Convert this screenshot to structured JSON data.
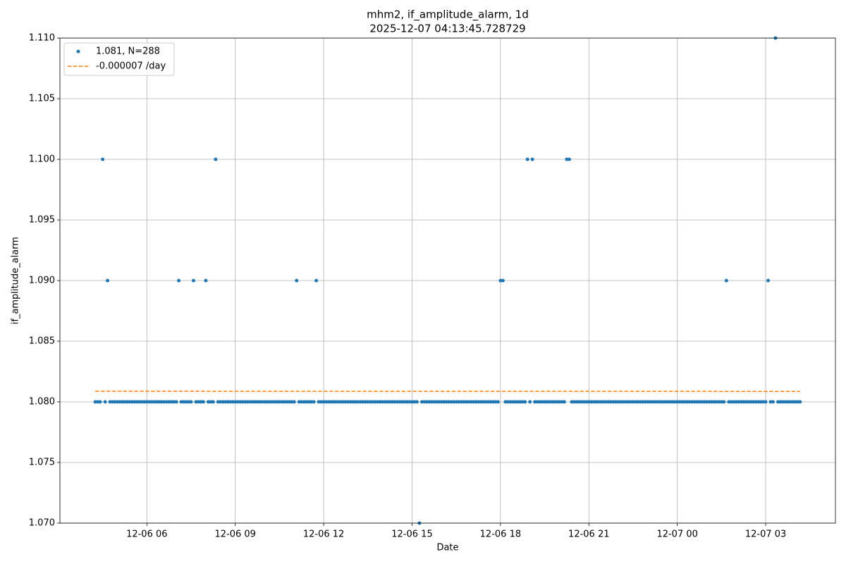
{
  "chart_data": {
    "type": "scatter",
    "title": "mhm2, if_amplitude_alarm, 1d",
    "subtitle": "2025-12-07 04:13:45.728729",
    "xlabel": "Date",
    "ylabel": "if_amplitude_alarm",
    "xlim": [
      "12-06 03:03",
      "12-07 05:22"
    ],
    "xticks": [
      "12-06 06",
      "12-06 09",
      "12-06 12",
      "12-06 15",
      "12-06 18",
      "12-06 21",
      "12-07 00",
      "12-07 03"
    ],
    "ylim": [
      1.07,
      1.11
    ],
    "yticks": [
      {
        "value": 1.07,
        "label": "1.070"
      },
      1.075,
      {
        "value": 1.08,
        "label": "1.080"
      },
      1.085,
      {
        "value": 1.09,
        "label": "1.090"
      },
      1.095,
      {
        "value": 1.1,
        "label": "1.100"
      },
      1.105,
      {
        "value": 1.11,
        "label": "1.110"
      }
    ],
    "grid": true,
    "legend": "upper left",
    "series": [
      {
        "name": "1.081, N=288",
        "color": "#1f77b4",
        "mark": "dot",
        "x": [
          "12-06 04:15",
          "12-06 04:20",
          "12-06 04:25",
          "12-06 04:30",
          "12-06 04:35",
          "12-06 04:40",
          "12-06 04:45",
          "12-06 04:50",
          "12-06 04:55",
          "12-06 05:00",
          "12-06 05:05",
          "12-06 05:10",
          "12-06 05:15",
          "12-06 05:20",
          "12-06 05:25",
          "12-06 05:30",
          "12-06 05:35",
          "12-06 05:40",
          "12-06 05:45",
          "12-06 05:50",
          "12-06 05:55",
          "12-06 06:00",
          "12-06 06:05",
          "12-06 06:10",
          "12-06 06:15",
          "12-06 06:20",
          "12-06 06:25",
          "12-06 06:30",
          "12-06 06:35",
          "12-06 06:40",
          "12-06 06:45",
          "12-06 06:50",
          "12-06 06:55",
          "12-06 07:00",
          "12-06 07:05",
          "12-06 07:10",
          "12-06 07:15",
          "12-06 07:20",
          "12-06 07:25",
          "12-06 07:30",
          "12-06 07:35",
          "12-06 07:40",
          "12-06 07:45",
          "12-06 07:50",
          "12-06 07:55",
          "12-06 08:00",
          "12-06 08:05",
          "12-06 08:10",
          "12-06 08:15",
          "12-06 08:20",
          "12-06 08:25",
          "12-06 08:30",
          "12-06 08:35",
          "12-06 08:40",
          "12-06 08:45",
          "12-06 08:50",
          "12-06 08:55",
          "12-06 09:00",
          "12-06 09:05",
          "12-06 09:10",
          "12-06 09:15",
          "12-06 09:20",
          "12-06 09:25",
          "12-06 09:30",
          "12-06 09:35",
          "12-06 09:40",
          "12-06 09:45",
          "12-06 09:50",
          "12-06 09:55",
          "12-06 10:00",
          "12-06 10:05",
          "12-06 10:10",
          "12-06 10:15",
          "12-06 10:20",
          "12-06 10:25",
          "12-06 10:30",
          "12-06 10:35",
          "12-06 10:40",
          "12-06 10:45",
          "12-06 10:50",
          "12-06 10:55",
          "12-06 11:00",
          "12-06 11:05",
          "12-06 11:10",
          "12-06 11:15",
          "12-06 11:20",
          "12-06 11:25",
          "12-06 11:30",
          "12-06 11:35",
          "12-06 11:40",
          "12-06 11:45",
          "12-06 11:50",
          "12-06 11:55",
          "12-06 12:00",
          "12-06 12:05",
          "12-06 12:10",
          "12-06 12:15",
          "12-06 12:20",
          "12-06 12:25",
          "12-06 12:30",
          "12-06 12:35",
          "12-06 12:40",
          "12-06 12:45",
          "12-06 12:50",
          "12-06 12:55",
          "12-06 13:00",
          "12-06 13:05",
          "12-06 13:10",
          "12-06 13:15",
          "12-06 13:20",
          "12-06 13:25",
          "12-06 13:30",
          "12-06 13:35",
          "12-06 13:40",
          "12-06 13:45",
          "12-06 13:50",
          "12-06 13:55",
          "12-06 14:00",
          "12-06 14:05",
          "12-06 14:10",
          "12-06 14:15",
          "12-06 14:20",
          "12-06 14:25",
          "12-06 14:30",
          "12-06 14:35",
          "12-06 14:40",
          "12-06 14:45",
          "12-06 14:50",
          "12-06 14:55",
          "12-06 15:00",
          "12-06 15:05",
          "12-06 15:10",
          "12-06 15:15",
          "12-06 15:20",
          "12-06 15:25",
          "12-06 15:30",
          "12-06 15:35",
          "12-06 15:40",
          "12-06 15:45",
          "12-06 15:50",
          "12-06 15:55",
          "12-06 16:00",
          "12-06 16:05",
          "12-06 16:10",
          "12-06 16:15",
          "12-06 16:20",
          "12-06 16:25",
          "12-06 16:30",
          "12-06 16:35",
          "12-06 16:40",
          "12-06 16:45",
          "12-06 16:50",
          "12-06 16:55",
          "12-06 17:00",
          "12-06 17:05",
          "12-06 17:10",
          "12-06 17:15",
          "12-06 17:20",
          "12-06 17:25",
          "12-06 17:30",
          "12-06 17:35",
          "12-06 17:40",
          "12-06 17:45",
          "12-06 17:50",
          "12-06 17:55",
          "12-06 18:00",
          "12-06 18:05",
          "12-06 18:10",
          "12-06 18:15",
          "12-06 18:20",
          "12-06 18:25",
          "12-06 18:30",
          "12-06 18:35",
          "12-06 18:40",
          "12-06 18:45",
          "12-06 18:50",
          "12-06 18:55",
          "12-06 19:00",
          "12-06 19:05",
          "12-06 19:10",
          "12-06 19:15",
          "12-06 19:20",
          "12-06 19:25",
          "12-06 19:30",
          "12-06 19:35",
          "12-06 19:40",
          "12-06 19:45",
          "12-06 19:50",
          "12-06 19:55",
          "12-06 20:00",
          "12-06 20:05",
          "12-06 20:10",
          "12-06 20:15",
          "12-06 20:20",
          "12-06 20:25",
          "12-06 20:30",
          "12-06 20:35",
          "12-06 20:40",
          "12-06 20:45",
          "12-06 20:50",
          "12-06 20:55",
          "12-06 21:00",
          "12-06 21:05",
          "12-06 21:10",
          "12-06 21:15",
          "12-06 21:20",
          "12-06 21:25",
          "12-06 21:30",
          "12-06 21:35",
          "12-06 21:40",
          "12-06 21:45",
          "12-06 21:50",
          "12-06 21:55",
          "12-06 22:00",
          "12-06 22:05",
          "12-06 22:10",
          "12-06 22:15",
          "12-06 22:20",
          "12-06 22:25",
          "12-06 22:30",
          "12-06 22:35",
          "12-06 22:40",
          "12-06 22:45",
          "12-06 22:50",
          "12-06 22:55",
          "12-06 23:00",
          "12-06 23:05",
          "12-06 23:10",
          "12-06 23:15",
          "12-06 23:20",
          "12-06 23:25",
          "12-06 23:30",
          "12-06 23:35",
          "12-06 23:40",
          "12-06 23:45",
          "12-06 23:50",
          "12-06 23:55",
          "12-07 00:00",
          "12-07 00:05",
          "12-07 00:10",
          "12-07 00:15",
          "12-07 00:20",
          "12-07 00:25",
          "12-07 00:30",
          "12-07 00:35",
          "12-07 00:40",
          "12-07 00:45",
          "12-07 00:50",
          "12-07 00:55",
          "12-07 01:00",
          "12-07 01:05",
          "12-07 01:10",
          "12-07 01:15",
          "12-07 01:20",
          "12-07 01:25",
          "12-07 01:30",
          "12-07 01:35",
          "12-07 01:40",
          "12-07 01:45",
          "12-07 01:50",
          "12-07 01:55",
          "12-07 02:00",
          "12-07 02:05",
          "12-07 02:10",
          "12-07 02:15",
          "12-07 02:20",
          "12-07 02:25",
          "12-07 02:30",
          "12-07 02:35",
          "12-07 02:40",
          "12-07 02:45",
          "12-07 02:50",
          "12-07 02:55",
          "12-07 03:00",
          "12-07 03:05",
          "12-07 03:10",
          "12-07 03:15",
          "12-07 03:20",
          "12-07 03:25",
          "12-07 03:30",
          "12-07 03:35",
          "12-07 03:40",
          "12-07 03:45",
          "12-07 03:50",
          "12-07 03:55",
          "12-07 04:00",
          "12-07 04:05",
          "12-07 04:10"
        ],
        "values": [
          1.08,
          1.08,
          1.08,
          1.1,
          1.08,
          1.09,
          1.08,
          1.08,
          1.08,
          1.08,
          1.08,
          1.08,
          1.08,
          1.08,
          1.08,
          1.08,
          1.08,
          1.08,
          1.08,
          1.08,
          1.08,
          1.08,
          1.08,
          1.08,
          1.08,
          1.08,
          1.08,
          1.08,
          1.08,
          1.08,
          1.08,
          1.08,
          1.08,
          1.08,
          1.09,
          1.08,
          1.08,
          1.08,
          1.08,
          1.08,
          1.09,
          1.08,
          1.08,
          1.08,
          1.08,
          1.09,
          1.08,
          1.08,
          1.08,
          1.1,
          1.08,
          1.08,
          1.08,
          1.08,
          1.08,
          1.08,
          1.08,
          1.08,
          1.08,
          1.08,
          1.08,
          1.08,
          1.08,
          1.08,
          1.08,
          1.08,
          1.08,
          1.08,
          1.08,
          1.08,
          1.08,
          1.08,
          1.08,
          1.08,
          1.08,
          1.08,
          1.08,
          1.08,
          1.08,
          1.08,
          1.08,
          1.08,
          1.09,
          1.08,
          1.08,
          1.08,
          1.08,
          1.08,
          1.08,
          1.08,
          1.09,
          1.08,
          1.08,
          1.08,
          1.08,
          1.08,
          1.08,
          1.08,
          1.08,
          1.08,
          1.08,
          1.08,
          1.08,
          1.08,
          1.08,
          1.08,
          1.08,
          1.08,
          1.08,
          1.08,
          1.08,
          1.08,
          1.08,
          1.08,
          1.08,
          1.08,
          1.08,
          1.08,
          1.08,
          1.08,
          1.08,
          1.08,
          1.08,
          1.08,
          1.08,
          1.08,
          1.08,
          1.08,
          1.08,
          1.08,
          1.08,
          1.08,
          1.07,
          1.08,
          1.08,
          1.08,
          1.08,
          1.08,
          1.08,
          1.08,
          1.08,
          1.08,
          1.08,
          1.08,
          1.08,
          1.08,
          1.08,
          1.08,
          1.08,
          1.08,
          1.08,
          1.08,
          1.08,
          1.08,
          1.08,
          1.08,
          1.08,
          1.08,
          1.08,
          1.08,
          1.08,
          1.08,
          1.08,
          1.08,
          1.08,
          1.09,
          1.09,
          1.08,
          1.08,
          1.08,
          1.08,
          1.08,
          1.08,
          1.08,
          1.08,
          1.08,
          1.1,
          1.08,
          1.1,
          1.08,
          1.08,
          1.08,
          1.08,
          1.08,
          1.08,
          1.08,
          1.08,
          1.08,
          1.08,
          1.08,
          1.08,
          1.08,
          1.1,
          1.1,
          1.08,
          1.08,
          1.08,
          1.08,
          1.08,
          1.08,
          1.08,
          1.08,
          1.08,
          1.08,
          1.08,
          1.08,
          1.08,
          1.08,
          1.08,
          1.08,
          1.08,
          1.08,
          1.08,
          1.08,
          1.08,
          1.08,
          1.08,
          1.08,
          1.08,
          1.08,
          1.08,
          1.08,
          1.08,
          1.08,
          1.08,
          1.08,
          1.08,
          1.08,
          1.08,
          1.08,
          1.08,
          1.08,
          1.08,
          1.08,
          1.08,
          1.08,
          1.08,
          1.08,
          1.08,
          1.08,
          1.08,
          1.08,
          1.08,
          1.08,
          1.08,
          1.08,
          1.08,
          1.08,
          1.08,
          1.08,
          1.08,
          1.08,
          1.08,
          1.08,
          1.08,
          1.08,
          1.08,
          1.09,
          1.08,
          1.08,
          1.08,
          1.08,
          1.08,
          1.08,
          1.08,
          1.08,
          1.08,
          1.08,
          1.08,
          1.08,
          1.08,
          1.08,
          1.08,
          1.08,
          1.09,
          1.08,
          1.08,
          1.11,
          1.08,
          1.08,
          1.08,
          1.08,
          1.08,
          1.08,
          1.08,
          1.08,
          1.08,
          1.08
        ]
      },
      {
        "name": "-0.000007 /day",
        "color": "#ff7f0e",
        "mark": "dashed-line",
        "x": [
          "12-06 04:15",
          "12-07 04:10"
        ],
        "values": [
          1.08087,
          1.08086
        ]
      }
    ]
  }
}
